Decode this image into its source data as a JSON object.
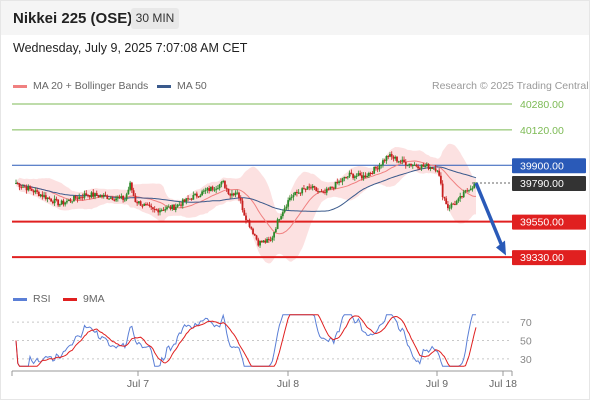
{
  "header": {
    "title": "Nikkei 225 (OSE)",
    "timeframe": "30 MIN",
    "datetime": "Wednesday, July 9, 2025 7:07:08 AM CET"
  },
  "legend": {
    "ma20_label": "MA 20 + Bollinger Bands",
    "ma20_color": "#f08080",
    "ma50_label": "MA 50",
    "ma50_color": "#3a5a8c",
    "credit": "Research © 2025 Trading Central"
  },
  "rsi_legend": {
    "rsi_label": "RSI",
    "rsi_color": "#5b7fd6",
    "ma_label": "9MA",
    "ma_color": "#e02020"
  },
  "chart_data": [
    {
      "type": "candlestick",
      "title": "Nikkei 225 (OSE)",
      "timeframe": "30 MIN",
      "x_ticks": [
        "Jul 7",
        "Jul 8",
        "Jul 9",
        "Jul 18"
      ],
      "y_range": [
        39250,
        40330
      ],
      "up_color": "#2a8a2a",
      "down_color": "#c82020",
      "levels": [
        {
          "value": 40280.0,
          "label": "40280.00",
          "style": "resistance",
          "color": "#7cba54"
        },
        {
          "value": 40120.0,
          "label": "40120.00",
          "style": "resistance",
          "color": "#7cba54"
        },
        {
          "value": 39900.0,
          "label": "39900.00",
          "style": "pivot",
          "color": "#2a5ab8"
        },
        {
          "value": 39790.0,
          "label": "39790.00",
          "style": "last-price",
          "color": "#333333"
        },
        {
          "value": 39550.0,
          "label": "39550.00",
          "style": "support",
          "color": "#e02020"
        },
        {
          "value": 39330.0,
          "label": "39330.00",
          "style": "support",
          "color": "#e02020"
        }
      ],
      "projection": {
        "from": 39790,
        "to": 39340,
        "color": "#2a5ab8"
      },
      "indicators": [
        "MA 20 + Bollinger Bands",
        "MA 50"
      ]
    },
    {
      "type": "line",
      "title": "RSI",
      "y_ticks": [
        "70",
        "50",
        "30"
      ],
      "y_tick_values": [
        70,
        50,
        30
      ],
      "y_range": [
        20,
        80
      ],
      "series": [
        {
          "name": "RSI",
          "color": "#5b7fd6"
        },
        {
          "name": "9MA",
          "color": "#e02020"
        }
      ]
    }
  ]
}
